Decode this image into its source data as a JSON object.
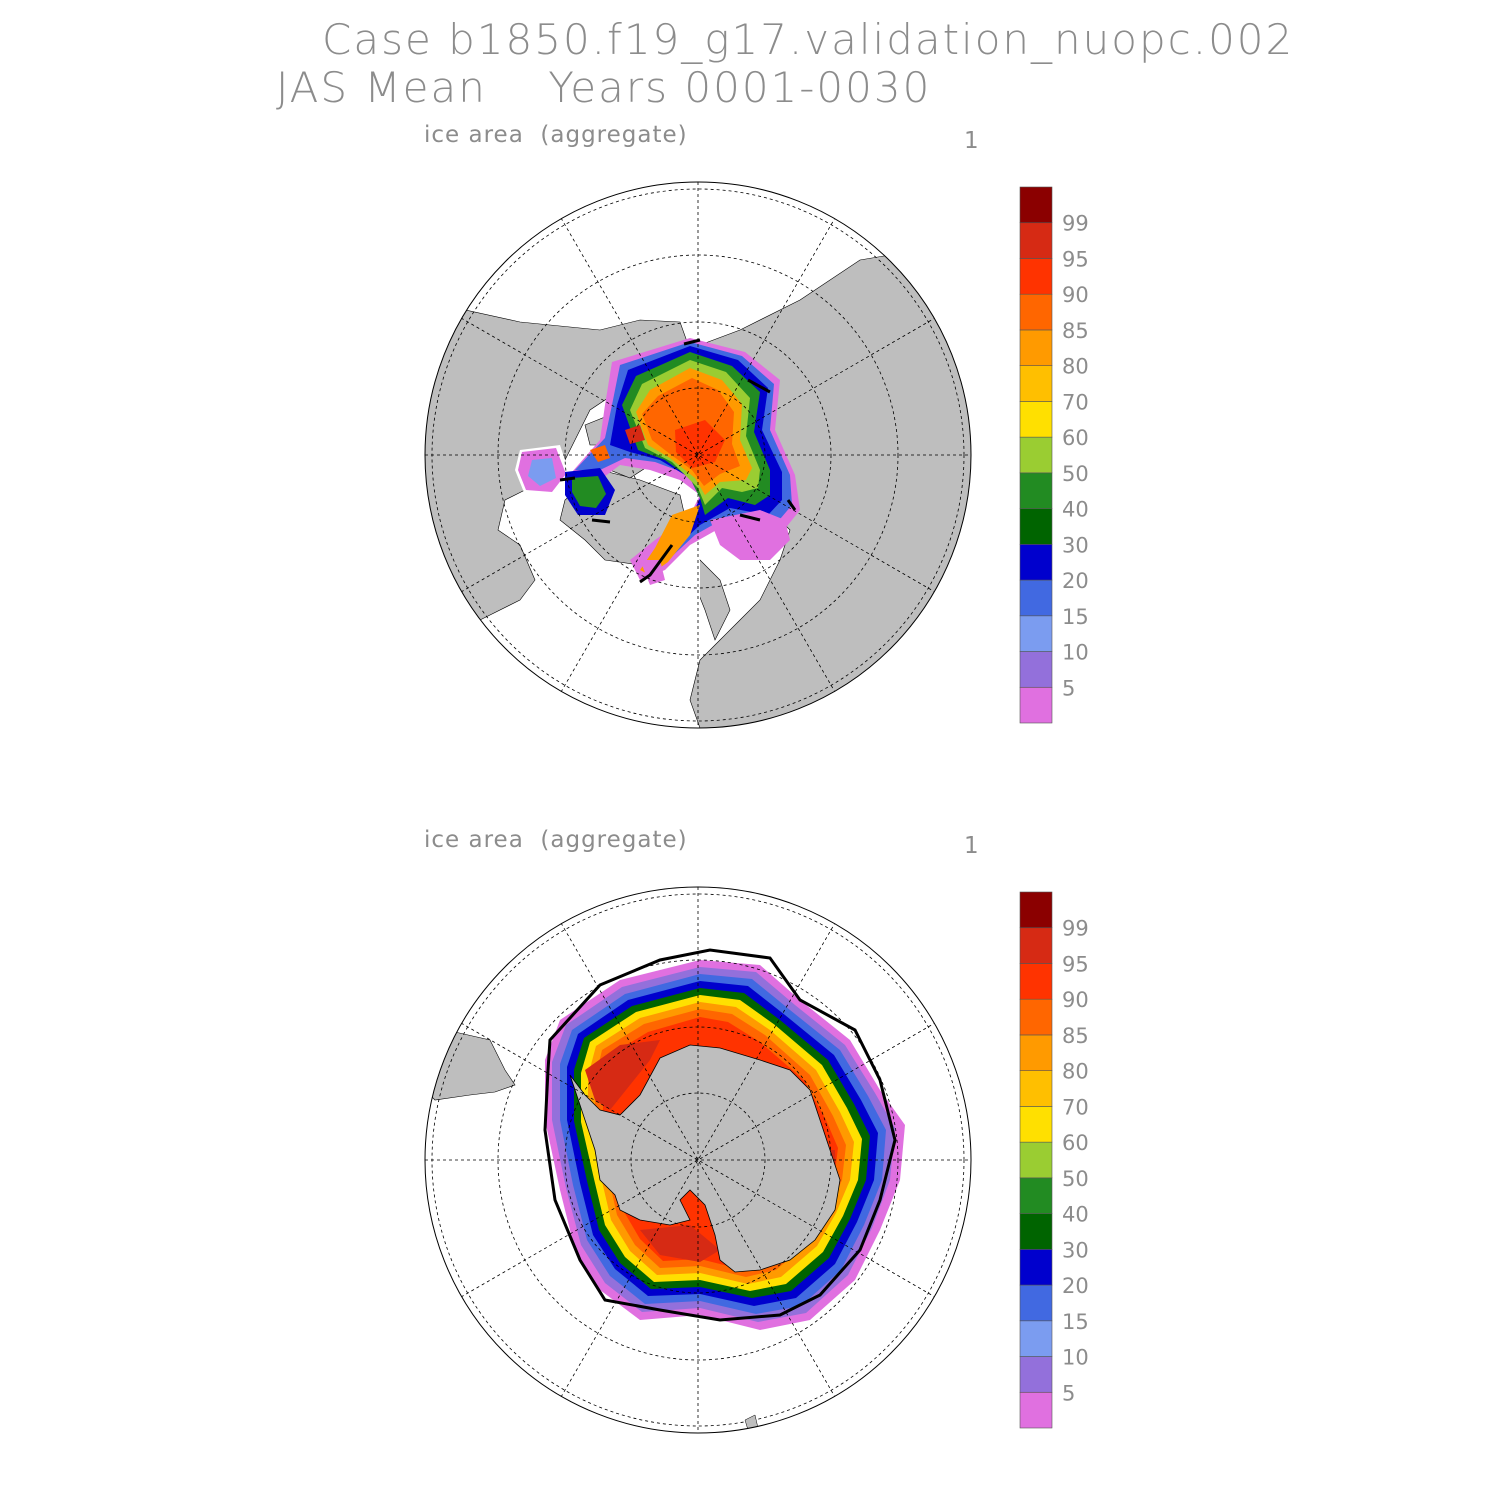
{
  "header": {
    "case_line": "Case b1850.f19_g17.validation_nuopc.002",
    "period_line": "JAS Mean    Years 0001-0030"
  },
  "panels": [
    {
      "id": "north",
      "hemisphere": "Arctic",
      "title": "ice area  (aggregate)",
      "panel_number": "1"
    },
    {
      "id": "south",
      "hemisphere": "Antarctic",
      "title": "ice area  (aggregate)",
      "panel_number": "1"
    }
  ],
  "colorbar": {
    "labels": [
      "5",
      "10",
      "15",
      "20",
      "30",
      "40",
      "50",
      "60",
      "70",
      "80",
      "85",
      "90",
      "95",
      "99"
    ],
    "colors": [
      "#e070e0",
      "#9370db",
      "#7b9cf0",
      "#4169e1",
      "#0000cd",
      "#006400",
      "#228b22",
      "#9acd32",
      "#ffe000",
      "#ffbf00",
      "#ff9a00",
      "#ff6600",
      "#ff3300",
      "#d62a14",
      "#8b0000"
    ]
  },
  "colors": {
    "land": "#bebebe",
    "ocean": "#ffffff",
    "grid": "#000000",
    "text": "#8c8c8c"
  }
}
